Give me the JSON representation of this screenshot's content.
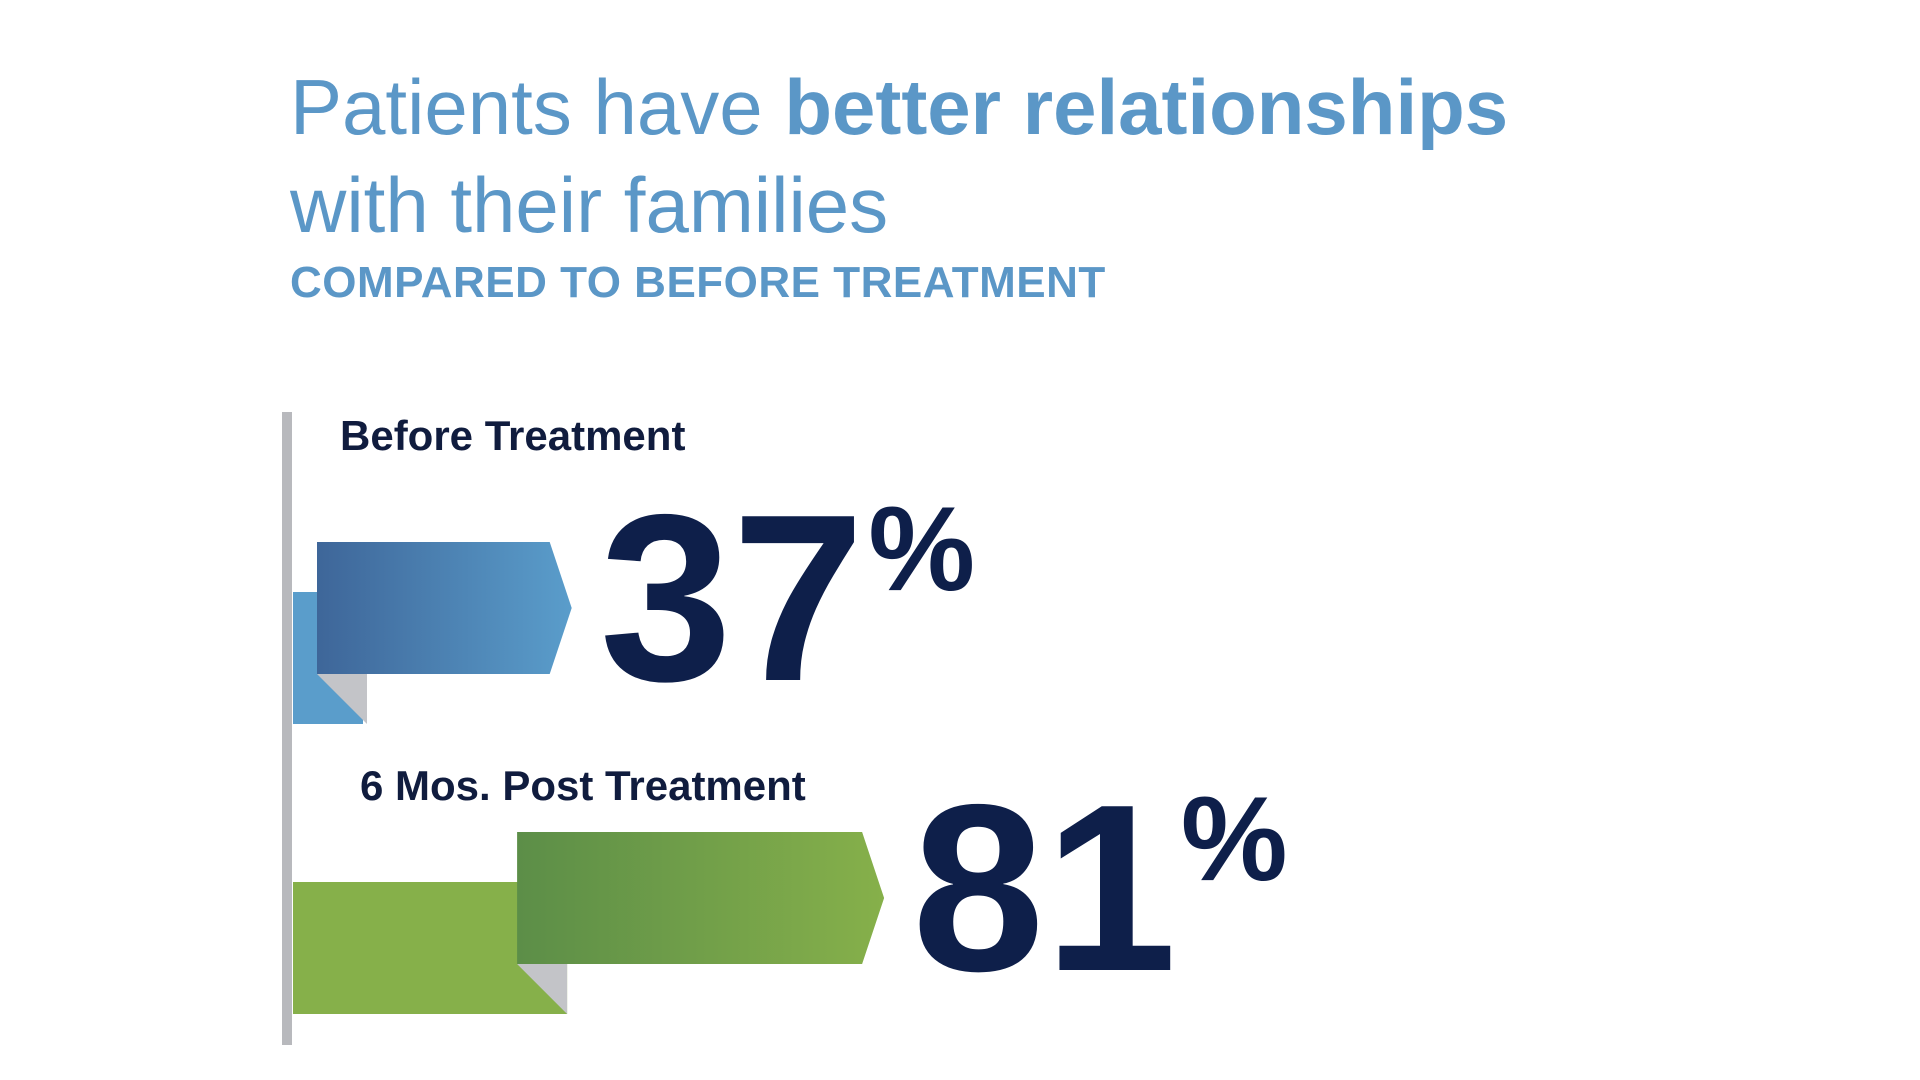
{
  "header": {
    "title_plain_1": "Patients have ",
    "title_bold": "better relationships",
    "title_line_2": "with their families",
    "subtitle": "COMPARED TO BEFORE TREATMENT"
  },
  "colors": {
    "title": "#5b97c7",
    "value_text": "#0e1f4a",
    "label_text": "#101c3e",
    "axis": "#b8b9bd",
    "fold": "#c3c4c8"
  },
  "chart_data": {
    "type": "bar",
    "orientation": "horizontal",
    "title": "Patients have better relationships with their families",
    "subtitle": "COMPARED TO BEFORE TREATMENT",
    "categories": [
      "Before Treatment",
      "6 Mos. Post Treatment"
    ],
    "values": [
      37,
      81
    ],
    "value_labels": [
      "37",
      "81"
    ],
    "unit": "%",
    "xlim": [
      0,
      100
    ],
    "bar_colors": [
      {
        "dark": "#3e6699",
        "light": "#5a9dcb"
      },
      {
        "dark": "#5c8e48",
        "light": "#86b04a"
      }
    ]
  }
}
